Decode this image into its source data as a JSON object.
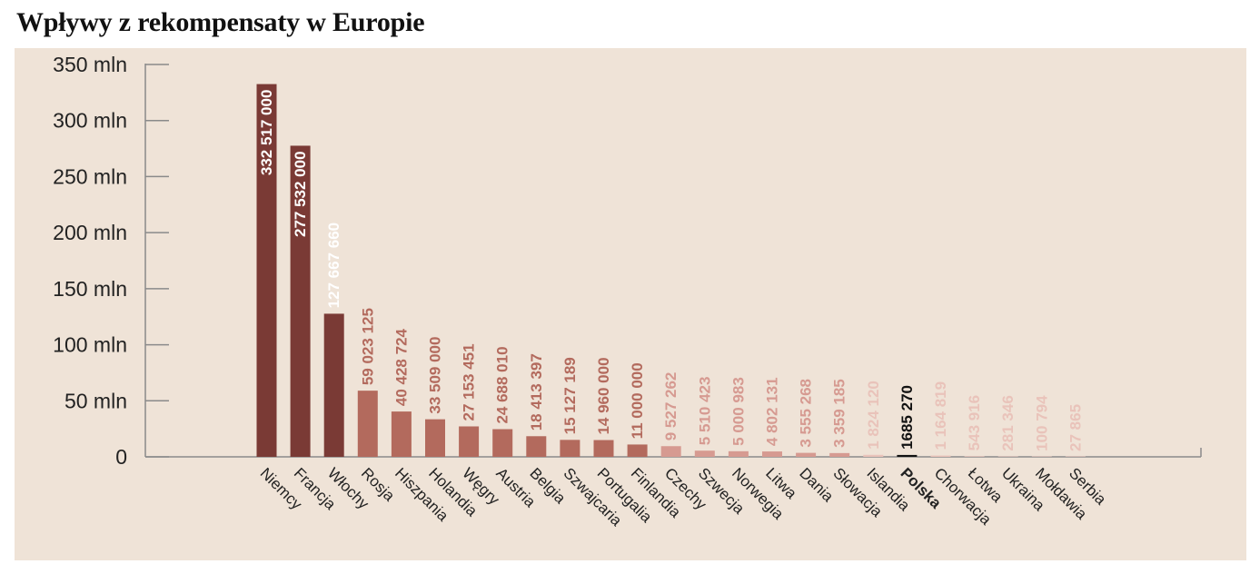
{
  "chart_data": {
    "type": "bar",
    "title": "Wpływy z rekompensaty w Europie",
    "xlabel": "",
    "ylabel": "",
    "ylim": [
      0,
      350000000
    ],
    "yticks": [
      {
        "value": 0,
        "label": "0"
      },
      {
        "value": 50000000,
        "label": "50 mln"
      },
      {
        "value": 100000000,
        "label": "100 mln"
      },
      {
        "value": 150000000,
        "label": "150 mln"
      },
      {
        "value": 200000000,
        "label": "200 mln"
      },
      {
        "value": 250000000,
        "label": "250 mln"
      },
      {
        "value": 300000000,
        "label": "300 mln"
      },
      {
        "value": 350000000,
        "label": "350 mln"
      }
    ],
    "categories": [
      "Niemcy",
      "Francja",
      "Włochy",
      "Rosja",
      "Hiszpania",
      "Holandia",
      "Węgry",
      "Austria",
      "Belgia",
      "Szwajcaria",
      "Portugalia",
      "Finlandia",
      "Czechy",
      "Szwecja",
      "Norwegia",
      "Litwa",
      "Dania",
      "Słowacja",
      "Islandia",
      "Polska",
      "Chorwacja",
      "Łotwa",
      "Ukraina",
      "Mołdawia",
      "Serbia"
    ],
    "values": [
      332517000,
      277532000,
      127667660,
      59023125,
      40428724,
      33509000,
      27153451,
      24688010,
      18413397,
      15127189,
      14960000,
      11000000,
      9527262,
      5510423,
      5000983,
      4802131,
      3555268,
      3359185,
      1824120,
      1685270,
      1164819,
      543916,
      281346,
      100794,
      27865
    ],
    "value_labels": [
      "332 517 000",
      "277 532 000",
      "127 667 660",
      "59 023 125",
      "40 428 724",
      "33 509 000",
      "27 153 451",
      "24 688 010",
      "18 413 397",
      "15 127 189",
      "14 960 000",
      "11 000 000",
      "9 527 262",
      "5 510 423",
      "5 000 983",
      "4 802 131",
      "3 555 268",
      "3 359 185",
      "1 824 120",
      "1685 270",
      "1 164 819",
      "543 916",
      "281 346",
      "100 794",
      "27 865"
    ],
    "highlight": "Polska",
    "colors": [
      "#7a3a35",
      "#7a3a35",
      "#7a3a35",
      "#b36a5d",
      "#b36a5d",
      "#b36a5d",
      "#b36a5d",
      "#b36a5d",
      "#b36a5d",
      "#b36a5d",
      "#b36a5d",
      "#b36a5d",
      "#d69a91",
      "#d69a91",
      "#d69a91",
      "#d69a91",
      "#d69a91",
      "#d69a91",
      "#e9c3ba",
      "#111111",
      "#e9c3ba",
      "#e9c3ba",
      "#e9c3ba",
      "#e9c3ba",
      "#e9c3ba"
    ],
    "label_colors": [
      "#ffffff",
      "#ffffff",
      "#ffffff",
      "#b36a5d",
      "#b36a5d",
      "#b36a5d",
      "#b36a5d",
      "#b36a5d",
      "#b36a5d",
      "#b36a5d",
      "#b36a5d",
      "#b36a5d",
      "#d69a91",
      "#d69a91",
      "#d69a91",
      "#d69a91",
      "#d69a91",
      "#d69a91",
      "#e9c3ba",
      "#111111",
      "#e9c3ba",
      "#e9c3ba",
      "#e9c3ba",
      "#e9c3ba",
      "#e9c3ba"
    ],
    "axis_color": "#8a8a8a"
  }
}
